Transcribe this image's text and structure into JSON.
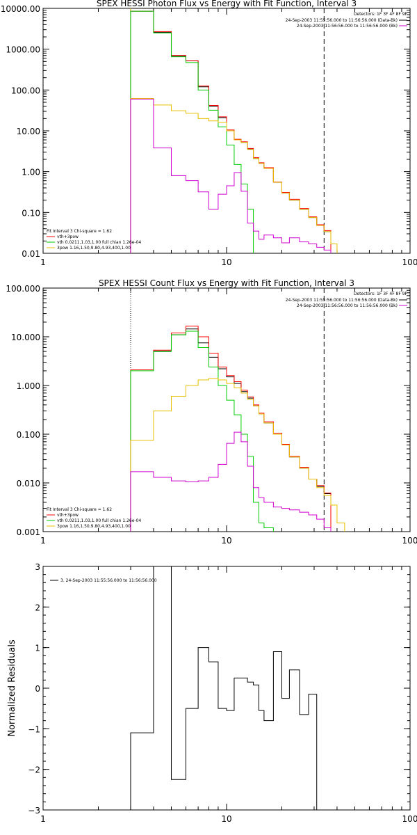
{
  "chart_data": [
    {
      "type": "line",
      "title": "SPEX HESSI Photon Flux vs Energy with Fit Function, Interval 3",
      "x_scale": "log",
      "y_scale": "log",
      "xlim": [
        1,
        100
      ],
      "ylim": [
        0.01,
        10000
      ],
      "x_ticks": [
        1,
        10,
        100
      ],
      "x_tick_labels": [
        "1",
        "10",
        "100"
      ],
      "y_ticks": [
        0.01,
        0.1,
        1,
        10,
        100,
        1000,
        10000
      ],
      "y_tick_labels": [
        "0.01",
        "0.10",
        "1.00",
        "10.00",
        "100.00",
        "1000.00",
        "10000.00"
      ],
      "detectors_label": "Detectors: 1F 3F 4F 8F 9F",
      "legend_right": [
        {
          "text": "24-Sep-2003 11:55:56.000 to 11:56:56.000 (Data-Bk)",
          "color": "#000000"
        },
        {
          "text": "24-Sep-2003 11:56:56.000 to 11:56:56.000 (Bk)",
          "color": "#d000d0"
        }
      ],
      "fit_label": "Fit Interval 3   Chi-square = 1.62",
      "legend_left": [
        {
          "text": "vth+3pow",
          "color": "#ff0000"
        },
        {
          "text": "vth 0.0211,1.03,1.00  full chian 1.26e-04",
          "color": "#00cc00"
        },
        {
          "text": "3pow 1.16,1.50,9.80,4.93,400,1.00",
          "color": "#e8c000"
        }
      ],
      "vlines": [
        {
          "x": 3.0,
          "style": "solid",
          "color": "#e8c000"
        },
        {
          "x": 34.0,
          "style": "dashed",
          "color": "#000000"
        }
      ],
      "x_edges": [
        3,
        4,
        5,
        6,
        7,
        8,
        9,
        10,
        11,
        12,
        13,
        14,
        15,
        16,
        18,
        20,
        22,
        25,
        28,
        31,
        34,
        37,
        40
      ],
      "series": [
        {
          "color": "#000000",
          "values": [
            8500,
            2600,
            680,
            520,
            120,
            40,
            21,
            10,
            6.0,
            5.2,
            3.6,
            2.1,
            1.6,
            1.2,
            0.55,
            0.3,
            0.2,
            0.12,
            0.075,
            0.048,
            0.034,
            null
          ]
        },
        {
          "color": "#ff0000",
          "values": [
            8500,
            2700,
            700,
            520,
            125,
            42,
            22,
            10.5,
            6.2,
            5.4,
            3.7,
            2.2,
            1.65,
            1.25,
            0.56,
            0.31,
            0.21,
            0.125,
            0.078,
            0.05,
            0.036,
            null
          ]
        },
        {
          "color": "#00cc00",
          "values": [
            8500,
            2500,
            650,
            470,
            100,
            32,
            12.5,
            4.5,
            1.5,
            0.5,
            0.12,
            null,
            null,
            null,
            null,
            null,
            null,
            null,
            null,
            null,
            null,
            null
          ]
        },
        {
          "color": "#e8c000",
          "values": [
            62,
            43,
            31,
            27,
            20,
            17.5,
            16,
            10,
            6.0,
            5.2,
            3.5,
            2.1,
            1.6,
            1.2,
            0.55,
            0.3,
            0.2,
            0.12,
            0.075,
            0.048,
            0.034,
            0.017
          ]
        },
        {
          "color": "#d000d0",
          "values": [
            60,
            3.8,
            0.8,
            0.6,
            0.32,
            0.12,
            0.28,
            0.45,
            0.95,
            0.33,
            0.055,
            0.035,
            0.022,
            0.028,
            0.024,
            0.018,
            0.024,
            0.019,
            0.017,
            0.014,
            0.012,
            null
          ]
        }
      ]
    },
    {
      "type": "line",
      "title": "SPEX HESSI Count Flux vs Energy with Fit Function, Interval 3",
      "x_scale": "log",
      "y_scale": "log",
      "xlim": [
        1,
        100
      ],
      "ylim": [
        0.001,
        100
      ],
      "x_ticks": [
        1,
        10,
        100
      ],
      "x_tick_labels": [
        "1",
        "10",
        "100"
      ],
      "y_ticks": [
        0.001,
        0.01,
        0.1,
        1,
        10,
        100
      ],
      "y_tick_labels": [
        "0.001",
        "0.010",
        "0.100",
        "1.000",
        "10.000",
        "100.000"
      ],
      "detectors_label": "Detectors: 1F 3F 4F 8F 9F",
      "legend_right": [
        {
          "text": "24-Sep-2003 11:55:56.000 to 11:56:56.000 (Data-Bk)",
          "color": "#000000"
        },
        {
          "text": "24-Sep-2003 11:56:56.000 to 11:56:56.000 (Bk)",
          "color": "#d000d0"
        }
      ],
      "fit_label": "Fit Interval 3   Chi-square = 1.62",
      "legend_left": [
        {
          "text": "vth+3pow",
          "color": "#ff0000"
        },
        {
          "text": "vth 0.0211,1.03,1.00  full chian 1.26e-04",
          "color": "#00cc00"
        },
        {
          "text": "3pow 1.16,1.50,9.80,4.93,400,1.00",
          "color": "#e8c000"
        }
      ],
      "vlines": [
        {
          "x": 3.0,
          "style": "dotted",
          "color": "#000000"
        },
        {
          "x": 34.0,
          "style": "dashed",
          "color": "#000000"
        }
      ],
      "x_edges": [
        3,
        4,
        5,
        6,
        7,
        8,
        9,
        10,
        11,
        12,
        13,
        14,
        15,
        16,
        18,
        20,
        22,
        25,
        28,
        31,
        34,
        37,
        40,
        44
      ],
      "series": [
        {
          "color": "#000000",
          "values": [
            2.1,
            5.1,
            11.0,
            14.5,
            7.5,
            3.8,
            2.2,
            1.5,
            1.1,
            0.75,
            0.55,
            0.38,
            0.26,
            0.17,
            0.1,
            0.06,
            0.034,
            0.02,
            0.012,
            0.0085,
            0.006,
            null,
            null
          ]
        },
        {
          "color": "#ff0000",
          "values": [
            2.1,
            5.3,
            12.0,
            16.5,
            10.0,
            4.6,
            2.4,
            1.6,
            1.2,
            0.8,
            0.58,
            0.4,
            0.27,
            0.18,
            0.105,
            0.062,
            0.035,
            0.021,
            0.012,
            0.0088,
            0.0062,
            null,
            null
          ]
        },
        {
          "color": "#00cc00",
          "values": [
            2.0,
            5.0,
            11.0,
            13.0,
            6.0,
            2.4,
            1.0,
            0.5,
            0.25,
            0.1,
            0.035,
            0.004,
            0.0015,
            0.0012,
            null,
            null,
            null,
            null,
            null,
            null,
            null,
            null,
            null
          ]
        },
        {
          "color": "#e8c000",
          "values": [
            0.075,
            0.3,
            0.6,
            1.0,
            1.3,
            1.4,
            1.3,
            1.1,
            0.9,
            0.7,
            0.52,
            0.38,
            0.26,
            0.17,
            0.1,
            0.06,
            0.034,
            0.02,
            0.012,
            0.008,
            0.0055,
            0.0035,
            0.0015
          ]
        },
        {
          "color": "#d000d0",
          "values": [
            0.017,
            0.013,
            0.011,
            0.0105,
            0.011,
            0.013,
            0.024,
            0.065,
            0.11,
            0.07,
            0.022,
            0.008,
            0.005,
            0.004,
            0.0032,
            0.003,
            0.0028,
            0.0025,
            0.0022,
            0.0018,
            0.0012,
            null,
            null
          ]
        }
      ]
    },
    {
      "type": "line",
      "title": "",
      "ylabel": "Normalized Residuals",
      "x_scale": "log",
      "y_scale": "linear",
      "xlim": [
        1,
        100
      ],
      "ylim": [
        -3,
        3
      ],
      "x_ticks": [
        1,
        10,
        100
      ],
      "x_tick_labels": [
        "1",
        "10",
        "100"
      ],
      "y_ticks": [
        -3,
        -2,
        -1,
        0,
        1,
        2,
        3
      ],
      "y_tick_labels": [
        "−3",
        "−2",
        "−1",
        "0",
        "1",
        "2",
        "3"
      ],
      "legend": "3. 24-Sep-2003 11:55:56.000 to 11:56:56.000",
      "x_edges": [
        3,
        4,
        5,
        6,
        7,
        8,
        9,
        10,
        11,
        12,
        13,
        14,
        15,
        16,
        18,
        20,
        22,
        25,
        28,
        31,
        34
      ],
      "series": [
        {
          "color": "#000000",
          "values": [
            -1.1,
            3.3,
            -2.25,
            -0.5,
            1.0,
            0.65,
            -0.5,
            -0.55,
            0.25,
            0.25,
            0.15,
            0.08,
            -0.55,
            -0.8,
            0.9,
            -0.25,
            0.45,
            -0.65,
            -0.15,
            -3.5
          ]
        }
      ]
    }
  ]
}
